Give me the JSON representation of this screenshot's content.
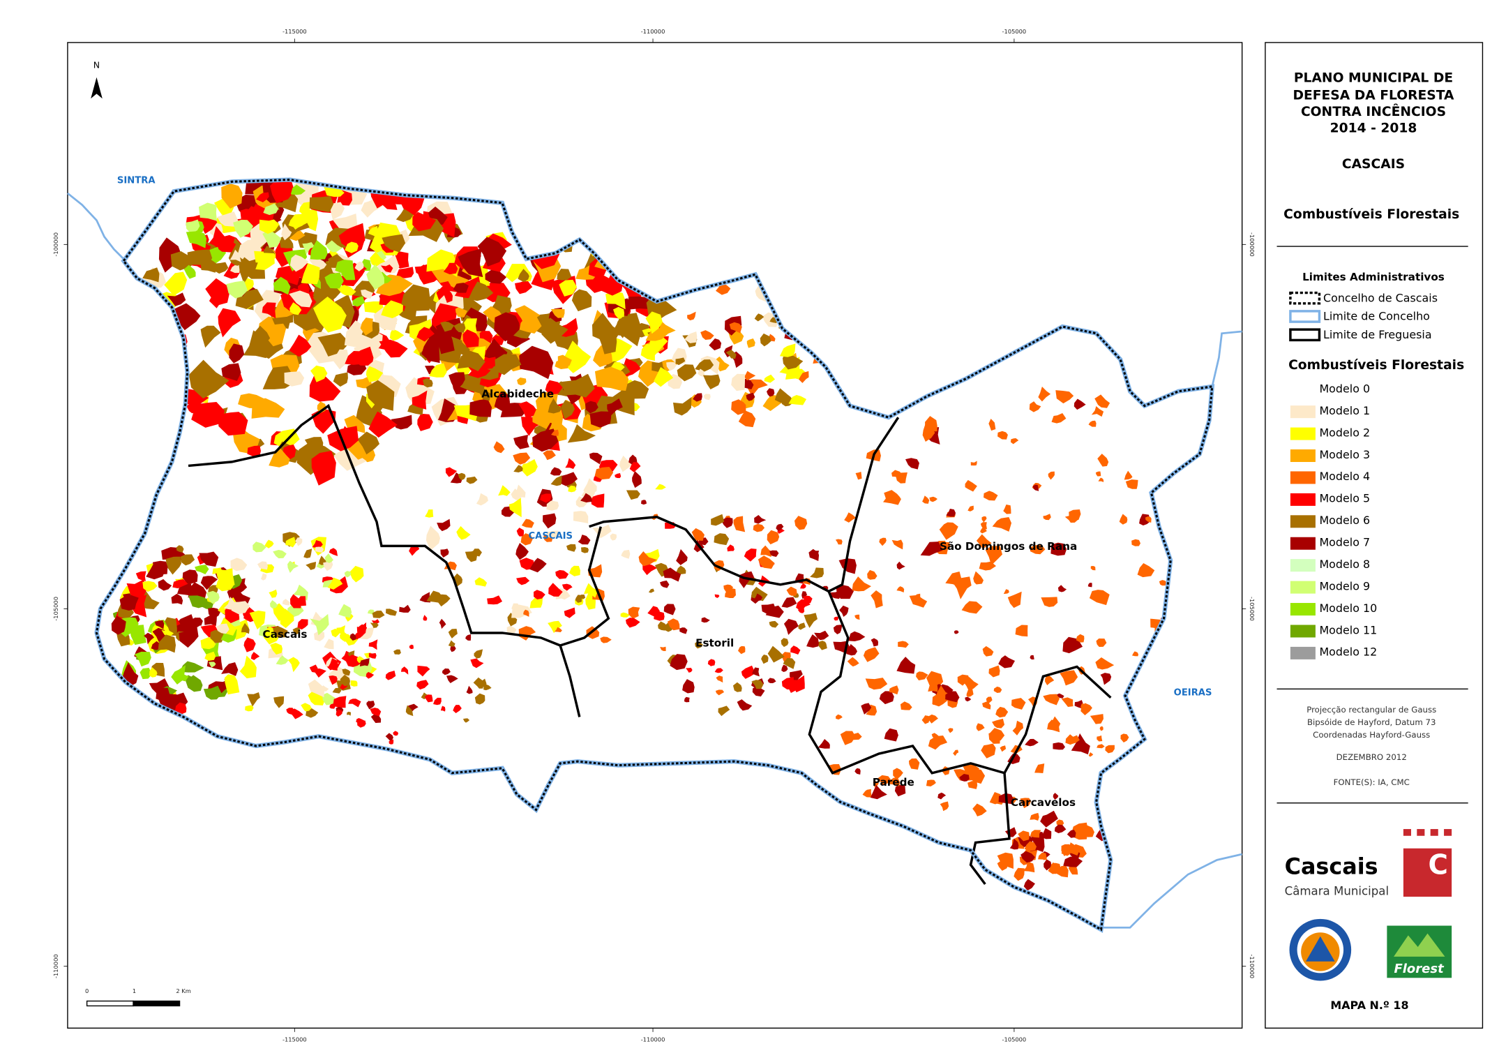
{
  "map": {
    "title": [
      "PLANO MUNICIPAL DE",
      "DEFESA DA FLORESTA",
      "CONTRA INCÊNCIOS",
      "2014 - 2018"
    ],
    "municipality": "CASCAIS",
    "subtitle": "Combustíveis Florestais",
    "admin_legend": {
      "title": "Limites Administrativos",
      "items": [
        "Concelho de Cascais",
        "Limite de Concelho",
        "Limite de Freguesia"
      ]
    },
    "fuel_legend": {
      "title": "Combustíveis Florestais",
      "items": [
        {
          "label": "Modelo 0",
          "color": "#ffffff"
        },
        {
          "label": "Modelo 1",
          "color": "#fde9c9"
        },
        {
          "label": "Modelo 2",
          "color": "#ffff00"
        },
        {
          "label": "Modelo 3",
          "color": "#ffaa00"
        },
        {
          "label": "Modelo 4",
          "color": "#ff6600"
        },
        {
          "label": "Modelo 5",
          "color": "#ff0000"
        },
        {
          "label": "Modelo 6",
          "color": "#a87000"
        },
        {
          "label": "Modelo 7",
          "color": "#a80000"
        },
        {
          "label": "Modelo 8",
          "color": "#d3ffbe"
        },
        {
          "label": "Modelo 9",
          "color": "#d1ff73"
        },
        {
          "label": "Modelo 10",
          "color": "#98e600"
        },
        {
          "label": "Modelo 11",
          "color": "#70a800"
        },
        {
          "label": "Modelo 12",
          "color": "#9c9c9c"
        }
      ]
    },
    "projection": [
      "Projecção rectangular de Gauss",
      "Bipsóide de Hayford, Datum 73",
      "Coordenadas Hayford-Gauss"
    ],
    "date": "DEZEMBRO 2012",
    "sources": "FONTE(S): IA, CMC",
    "logos": {
      "cascais": "Cascais",
      "camara": "Câmara Municipal",
      "c": "C",
      "florest": "Florest"
    },
    "map_number": "MAPA N.º 18",
    "north": "N",
    "scale_bar": [
      "0",
      "1",
      "2 Km"
    ],
    "neighbors": [
      "SINTRA",
      "CASCAIS",
      "OEIRAS"
    ],
    "parishes": [
      "Alcabideche",
      "São Domingos de Rana",
      "Cascais",
      "Estoril",
      "Parede",
      "Carcavelos"
    ],
    "ticks": {
      "top": [
        "-115000",
        "-110000",
        "-105000"
      ],
      "bottom": [
        "-115000",
        "-110000",
        "-105000"
      ],
      "left": [
        "-100000",
        "-105000",
        "-110000"
      ],
      "right": [
        "-100000",
        "-105000",
        "-110000"
      ]
    }
  }
}
